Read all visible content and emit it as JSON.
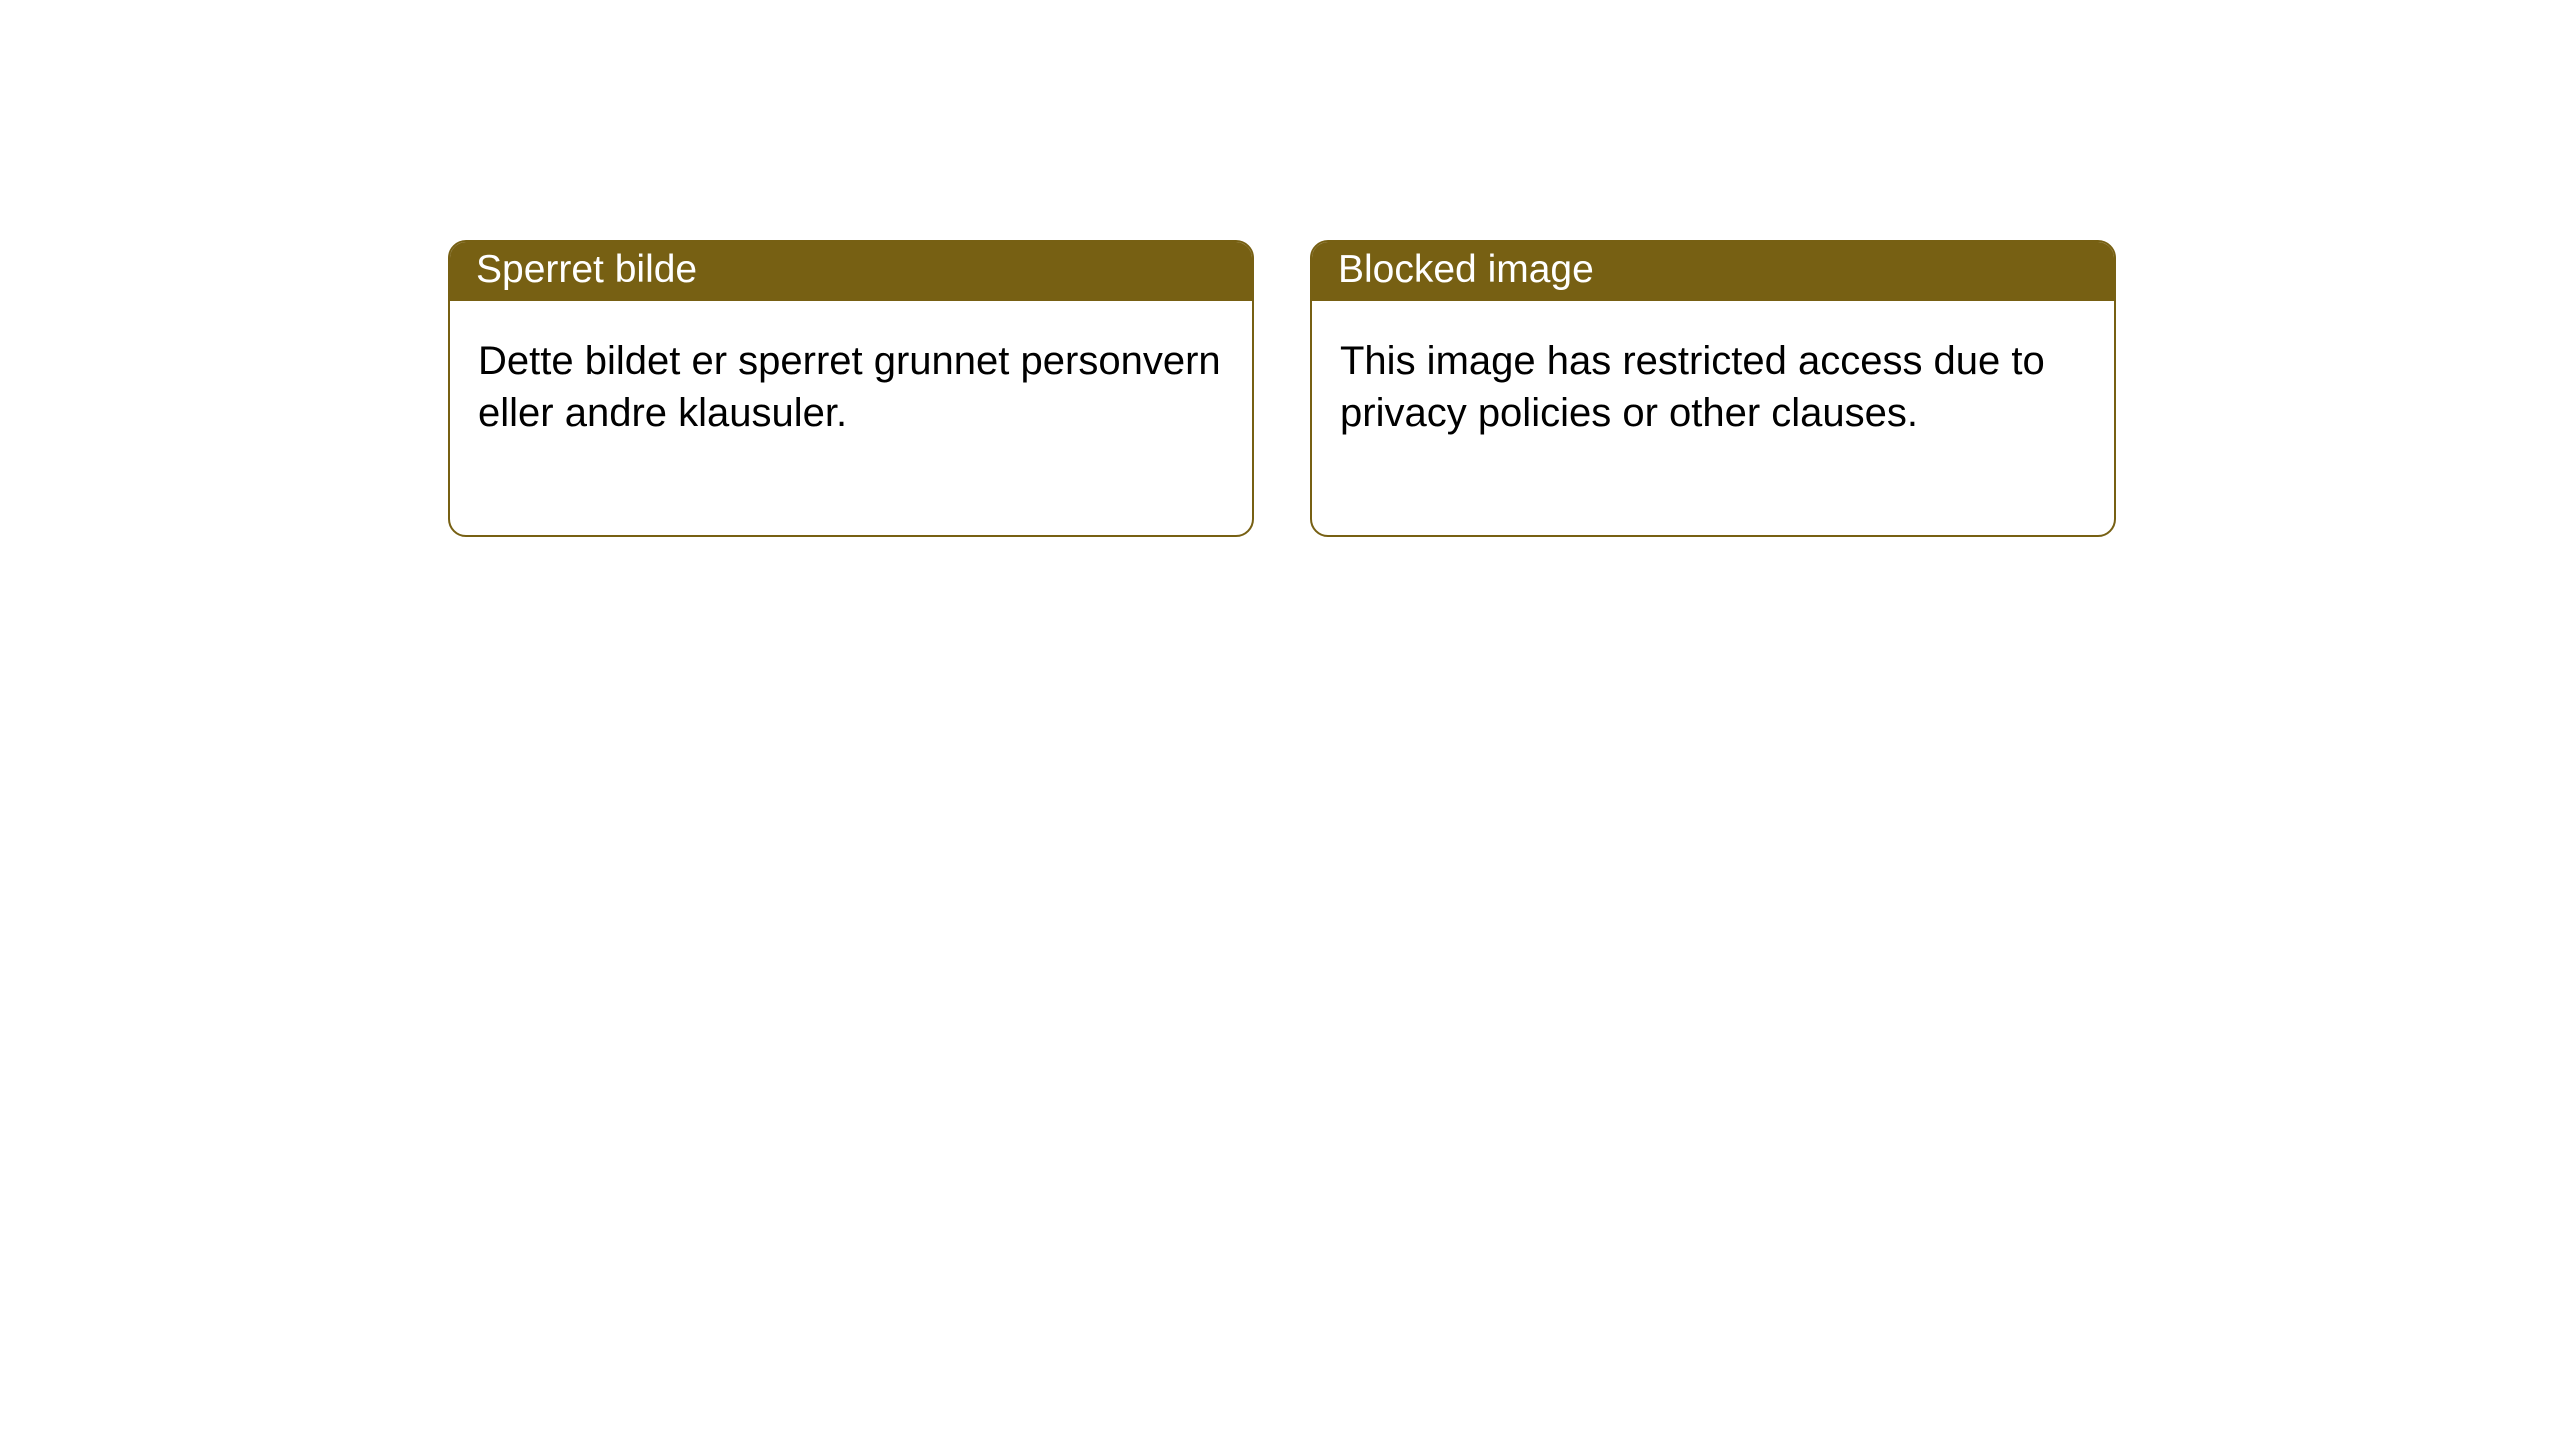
{
  "layout": {
    "background_color": "#ffffff",
    "card_border_color": "#776013",
    "header_bg_color": "#776013",
    "header_text_color": "#ffffff",
    "body_text_color": "#000000",
    "card_border_radius": 18,
    "header_fontsize": 39,
    "body_fontsize": 40
  },
  "cards": [
    {
      "lang": "no",
      "title": "Sperret bilde",
      "body": "Dette bildet er sperret grunnet personvern eller andre klausuler."
    },
    {
      "lang": "en",
      "title": "Blocked image",
      "body": "This image has restricted access due to privacy policies or other clauses."
    }
  ]
}
